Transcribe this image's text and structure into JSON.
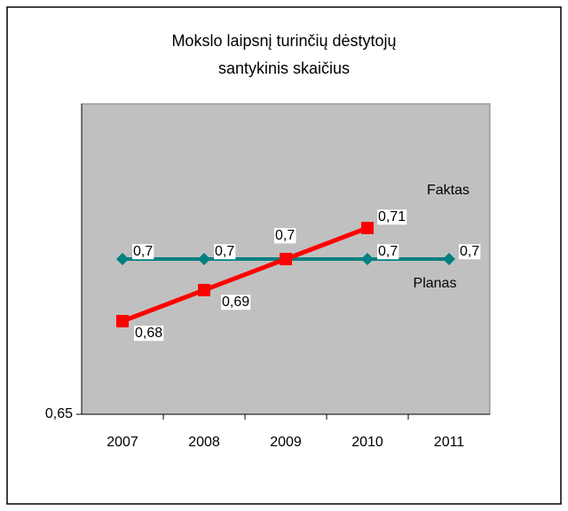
{
  "chart_data": {
    "type": "line",
    "title": [
      "Mokslo laipsnį turinčių dėstytojų",
      "santykinis skaičius"
    ],
    "categories": [
      "2007",
      "2008",
      "2009",
      "2010",
      "2011"
    ],
    "series": [
      {
        "name": "Planas",
        "color": "#008080",
        "marker": "diamond",
        "values": [
          0.7,
          0.7,
          0.7,
          0.7,
          0.7
        ],
        "value_labels": [
          "0,7",
          "0,7",
          "0,7",
          "0,7",
          "0,7"
        ]
      },
      {
        "name": "Faktas",
        "color": "#ff0000",
        "marker": "square",
        "values": [
          0.68,
          0.69,
          0.7,
          0.71,
          null
        ],
        "value_labels": [
          "0,68",
          "0,69",
          "0,7",
          "0,71",
          null
        ]
      }
    ],
    "ylim": [
      0.65,
      0.75
    ],
    "yticks": [
      {
        "value": 0.65,
        "label": "0,65"
      }
    ],
    "plot_background": "#c0c0c0"
  }
}
